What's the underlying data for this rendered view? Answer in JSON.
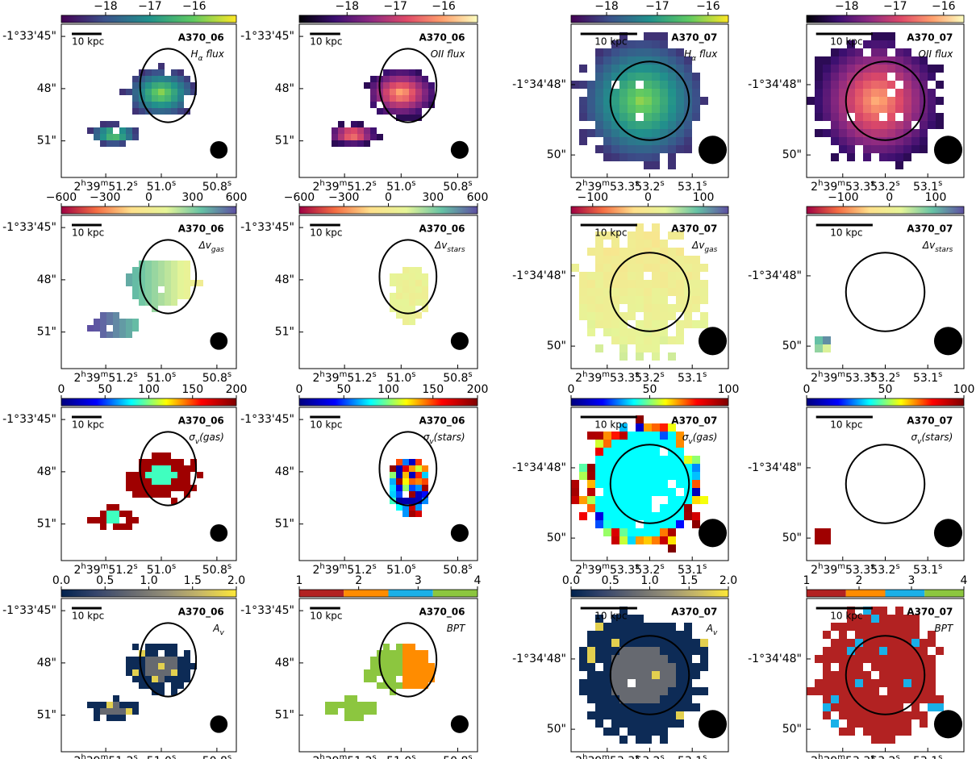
{
  "scale_bar_label": "10 kpc",
  "columns": [
    {
      "galaxy": "A370_06",
      "xlim": [
        51.36,
        50.73
      ],
      "xticks": [
        {
          "value": 51.2,
          "label": [
            {
              "text": "2"
            },
            {
              "text": "h",
              "sup": true
            },
            {
              "text": "39"
            },
            {
              "text": "m",
              "sup": true
            },
            {
              "text": "51.2"
            },
            {
              "text": "s",
              "sup": true
            }
          ]
        },
        {
          "value": 51.0,
          "label": [
            {
              "text": "51.0"
            },
            {
              "text": "s",
              "sup": true
            }
          ]
        },
        {
          "value": 50.8,
          "label": [
            {
              "text": "50.8"
            },
            {
              "text": "s",
              "sup": true
            }
          ]
        }
      ],
      "ylim": [
        44.3,
        53.1
      ],
      "yticks": [
        {
          "value": 45,
          "label": "-1°33'45\""
        },
        {
          "value": 48,
          "label": "48\""
        },
        {
          "value": 51,
          "label": "51\""
        }
      ],
      "panels": [
        {
          "quantity": [
            {
              "text": "H"
            },
            {
              "text": "α",
              "sub": true
            },
            {
              "text": " flux"
            }
          ],
          "colorbar": {
            "colormap": "viridis",
            "lim": [
              -19,
              -15.05
            ],
            "ticks": [
              {
                "value": -18,
                "label": "−18"
              },
              {
                "value": -17,
                "label": "−17"
              },
              {
                "value": -16,
                "label": "−16"
              }
            ]
          }
        },
        {
          "quantity": [
            {
              "text": "Δv"
            },
            {
              "text": "gas",
              "sub": true
            }
          ],
          "colorbar": {
            "colormap": "spectral",
            "lim": [
              -600,
              600
            ],
            "ticks": [
              {
                "value": -600,
                "label": "−600"
              },
              {
                "value": -300,
                "label": "−300"
              },
              0,
              300,
              600
            ]
          }
        },
        {
          "quantity": [
            {
              "text": "σ"
            },
            {
              "text": "v",
              "sub": true
            },
            {
              "text": "(gas)"
            }
          ],
          "colorbar": {
            "colormap": "jet",
            "lim": [
              0,
              200
            ],
            "ticks": [
              0,
              50,
              100,
              150,
              200
            ]
          }
        },
        {
          "quantity": [
            {
              "text": "A"
            },
            {
              "text": "v",
              "sub": true
            }
          ],
          "colorbar": {
            "colormap": "cividis",
            "lim": [
              0,
              2
            ],
            "ticks": [
              {
                "value": 0,
                "label": "0.0"
              },
              {
                "value": 0.5,
                "label": "0.5"
              },
              {
                "value": 1,
                "label": "1.0"
              },
              {
                "value": 1.5,
                "label": "1.5"
              },
              {
                "value": 2,
                "label": "2.0"
              }
            ]
          }
        }
      ]
    },
    {
      "galaxy": "A370_06",
      "xlim": [
        51.36,
        50.73
      ],
      "xticks": [
        {
          "value": 51.2,
          "label": [
            {
              "text": "2"
            },
            {
              "text": "h",
              "sup": true
            },
            {
              "text": "39"
            },
            {
              "text": "m",
              "sup": true
            },
            {
              "text": "51.2"
            },
            {
              "text": "s",
              "sup": true
            }
          ]
        },
        {
          "value": 51.0,
          "label": [
            {
              "text": "51.0"
            },
            {
              "text": "s",
              "sup": true
            }
          ]
        },
        {
          "value": 50.8,
          "label": [
            {
              "text": "50.8"
            },
            {
              "text": "s",
              "sup": true
            }
          ]
        }
      ],
      "ylim": [
        44.3,
        53.1
      ],
      "yticks": [
        {
          "value": 45,
          "label": "-1°33'45\""
        },
        {
          "value": 48,
          "label": "48\""
        },
        {
          "value": 51,
          "label": "51\""
        }
      ],
      "panels": [
        {
          "quantity": [
            {
              "text": "OII flux"
            }
          ],
          "colorbar": {
            "colormap": "magma",
            "lim": [
              -18.99,
              -15.3
            ],
            "ticks": [
              {
                "value": -18,
                "label": "−18"
              },
              {
                "value": -17,
                "label": "−17"
              },
              {
                "value": -16,
                "label": "−16"
              }
            ]
          }
        },
        {
          "quantity": [
            {
              "text": "Δv"
            },
            {
              "text": "stars",
              "sub": true
            }
          ],
          "colorbar": {
            "colormap": "spectral",
            "lim": [
              -600,
              600
            ],
            "ticks": [
              {
                "value": -600,
                "label": "−600"
              },
              {
                "value": -300,
                "label": "−300"
              },
              0,
              300,
              600
            ]
          }
        },
        {
          "quantity": [
            {
              "text": "σ"
            },
            {
              "text": "v",
              "sub": true
            },
            {
              "text": "(stars)"
            }
          ],
          "colorbar": {
            "colormap": "jet",
            "lim": [
              0,
              200
            ],
            "ticks": [
              0,
              50,
              100,
              150,
              200
            ]
          }
        },
        {
          "quantity": [
            {
              "text": "BPT"
            }
          ],
          "colorbar": {
            "colormap": "discrete",
            "colors": [
              "#b22222",
              "#ff8c00",
              "#1ab0e8",
              "#8cc63f"
            ],
            "lim": [
              1,
              4
            ],
            "ticks": [
              1,
              2,
              3,
              4
            ]
          }
        }
      ]
    },
    {
      "galaxy": "A370_07",
      "xlim": [
        53.385,
        53.015
      ],
      "xticks": [
        {
          "value": 53.3,
          "label": [
            {
              "text": "2"
            },
            {
              "text": "h",
              "sup": true
            },
            {
              "text": "39"
            },
            {
              "text": "m",
              "sup": true
            },
            {
              "text": "53.3"
            },
            {
              "text": "s",
              "sup": true
            }
          ]
        },
        {
          "value": 53.2,
          "label": [
            {
              "text": "53.2"
            },
            {
              "text": "s",
              "sup": true
            }
          ]
        },
        {
          "value": 53.1,
          "label": [
            {
              "text": "53.1"
            },
            {
              "text": "s",
              "sup": true
            }
          ]
        }
      ],
      "ylim": [
        46.28,
        50.64
      ],
      "yticks": [
        {
          "value": 48,
          "label": "-1°34'48\""
        },
        {
          "value": 50,
          "label": "50\""
        }
      ],
      "panels": [
        {
          "quantity": [
            {
              "text": "H"
            },
            {
              "text": "α",
              "sub": true
            },
            {
              "text": " flux"
            }
          ],
          "colorbar": {
            "colormap": "viridis",
            "lim": [
              -18.7,
              -15.6
            ],
            "ticks": [
              {
                "value": -18,
                "label": "−18"
              },
              {
                "value": -17,
                "label": "−17"
              },
              {
                "value": -16,
                "label": "−16"
              }
            ]
          }
        },
        {
          "quantity": [
            {
              "text": "Δv"
            },
            {
              "text": "gas",
              "sub": true
            }
          ],
          "colorbar": {
            "colormap": "spectral",
            "lim": [
              -139,
              145
            ],
            "ticks": [
              {
                "value": -100,
                "label": "−100"
              },
              0,
              100
            ]
          }
        },
        {
          "quantity": [
            {
              "text": "σ"
            },
            {
              "text": "v",
              "sub": true
            },
            {
              "text": "(gas)"
            }
          ],
          "colorbar": {
            "colormap": "jet",
            "lim": [
              0,
              100
            ],
            "ticks": [
              0,
              50,
              100
            ]
          }
        },
        {
          "quantity": [
            {
              "text": "A"
            },
            {
              "text": "v",
              "sub": true
            }
          ],
          "colorbar": {
            "colormap": "cividis",
            "lim": [
              0,
              2
            ],
            "ticks": [
              {
                "value": 0,
                "label": "0.0"
              },
              {
                "value": 0.5,
                "label": "0.5"
              },
              {
                "value": 1,
                "label": "1.0"
              },
              {
                "value": 1.5,
                "label": "1.5"
              },
              {
                "value": 2,
                "label": "2.0"
              }
            ]
          }
        }
      ]
    },
    {
      "galaxy": "A370_07",
      "xlim": [
        53.385,
        53.015
      ],
      "xticks": [
        {
          "value": 53.3,
          "label": [
            {
              "text": "2"
            },
            {
              "text": "h",
              "sup": true
            },
            {
              "text": "39"
            },
            {
              "text": "m",
              "sup": true
            },
            {
              "text": "53.3"
            },
            {
              "text": "s",
              "sup": true
            }
          ]
        },
        {
          "value": 53.2,
          "label": [
            {
              "text": "53.2"
            },
            {
              "text": "s",
              "sup": true
            }
          ]
        },
        {
          "value": 53.1,
          "label": [
            {
              "text": "53.1"
            },
            {
              "text": "s",
              "sup": true
            }
          ]
        }
      ],
      "ylim": [
        46.28,
        50.64
      ],
      "yticks": [
        {
          "value": 48,
          "label": "-1°34'48\""
        },
        {
          "value": 50,
          "label": "50\""
        }
      ],
      "panels": [
        {
          "quantity": [
            {
              "text": "OII flux"
            }
          ],
          "colorbar": {
            "colormap": "magma",
            "lim": [
              -18.83,
              -15.58
            ],
            "ticks": [
              {
                "value": -18,
                "label": "−18"
              },
              {
                "value": -17,
                "label": "−17"
              },
              {
                "value": -16,
                "label": "−16"
              }
            ]
          }
        },
        {
          "quantity": [
            {
              "text": "Δv"
            },
            {
              "text": "stars",
              "sub": true
            }
          ],
          "colorbar": {
            "colormap": "spectral",
            "lim": [
              -179,
              161
            ],
            "ticks": [
              {
                "value": -100,
                "label": "−100"
              },
              0,
              100
            ]
          }
        },
        {
          "quantity": [
            {
              "text": "σ"
            },
            {
              "text": "v",
              "sub": true
            },
            {
              "text": "(stars)"
            }
          ],
          "colorbar": {
            "colormap": "jet",
            "lim": [
              0,
              100
            ],
            "ticks": [
              0,
              50,
              100
            ]
          }
        },
        {
          "quantity": [
            {
              "text": "BPT"
            }
          ],
          "colorbar": {
            "colormap": "discrete",
            "colors": [
              "#b22222",
              "#ff8c00",
              "#1ab0e8",
              "#8cc63f"
            ],
            "lim": [
              1,
              4
            ],
            "ticks": [
              1,
              2,
              3,
              4
            ]
          }
        }
      ]
    }
  ]
}
